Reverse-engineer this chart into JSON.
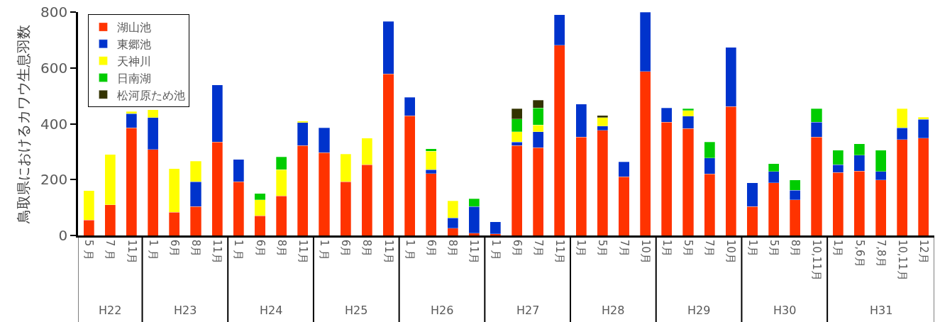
{
  "chart_data": {
    "type": "bar",
    "stacked": true,
    "ylabel": "鳥取県におけるカワウ生息羽数",
    "categories": [
      "5 月",
      "7 月",
      "11月",
      "1 月",
      "6月",
      "8月",
      "11月",
      "1 月",
      "6月",
      "8月",
      "11月",
      "1 月",
      "6月",
      "8月",
      "11月",
      "1 月",
      "6月",
      "8月",
      "11月",
      "1 月",
      "6月",
      "7月",
      "11月",
      "1月",
      "5月",
      "7月",
      "10月",
      "1月",
      "5月",
      "7月",
      "10月",
      "1月",
      "5月",
      "8月",
      "10,11月",
      "1月",
      "5,6月",
      "7,8月",
      "10,11月",
      "12月"
    ],
    "annotations": [
      "H22",
      "H23",
      "H24",
      "H25",
      "H26",
      "H27",
      "H28",
      "H29",
      "H30",
      "H31"
    ],
    "series": [
      {
        "name": "湖山池",
        "color": "#ff3300",
        "values": [
          55,
          110,
          385,
          308,
          83,
          103,
          335,
          192,
          70,
          141,
          322,
          297,
          192,
          253,
          579,
          429,
          222,
          26,
          8,
          6,
          322,
          314,
          681,
          353,
          376,
          210,
          587,
          406,
          383,
          220,
          461,
          104,
          189,
          128,
          352,
          226,
          230,
          199,
          344,
          349
        ]
      },
      {
        "name": "東郷池",
        "color": "#0033cc",
        "values": [
          null,
          null,
          51,
          114,
          null,
          89,
          204,
          81,
          null,
          null,
          83,
          88,
          null,
          null,
          187,
          66,
          14,
          37,
          96,
          43,
          12,
          58,
          109,
          118,
          16,
          53,
          213,
          51,
          44,
          57,
          213,
          85,
          40,
          34,
          54,
          27,
          57,
          30,
          41,
          67
        ]
      },
      {
        "name": "天神川",
        "color": "#ffff00",
        "values": [
          106,
          180,
          8,
          28,
          157,
          74,
          null,
          null,
          57,
          95,
          4,
          null,
          99,
          95,
          null,
          null,
          65,
          61,
          null,
          null,
          38,
          24,
          null,
          null,
          30,
          null,
          null,
          null,
          21,
          null,
          null,
          null,
          null,
          null,
          null,
          null,
          null,
          null,
          69,
          7
        ]
      },
      {
        "name": "日南湖",
        "color": "#00cc00",
        "values": [
          null,
          null,
          null,
          null,
          null,
          null,
          null,
          null,
          24,
          45,
          null,
          null,
          null,
          null,
          null,
          null,
          10,
          null,
          27,
          null,
          45,
          61,
          null,
          null,
          null,
          null,
          null,
          null,
          6,
          58,
          null,
          null,
          28,
          37,
          48,
          52,
          41,
          76,
          null,
          null
        ]
      },
      {
        "name": "松河原ため池",
        "color": "#333300",
        "values": [
          null,
          null,
          null,
          null,
          null,
          null,
          null,
          null,
          null,
          null,
          null,
          null,
          null,
          null,
          null,
          null,
          null,
          null,
          null,
          null,
          37,
          27,
          null,
          null,
          8,
          null,
          null,
          null,
          null,
          null,
          null,
          null,
          null,
          null,
          null,
          null,
          null,
          null,
          null,
          null
        ]
      }
    ],
    "ylim": [
      0,
      800
    ],
    "yticks": [
      0,
      200,
      400,
      600,
      800
    ],
    "grid": false,
    "legend": "top left"
  }
}
